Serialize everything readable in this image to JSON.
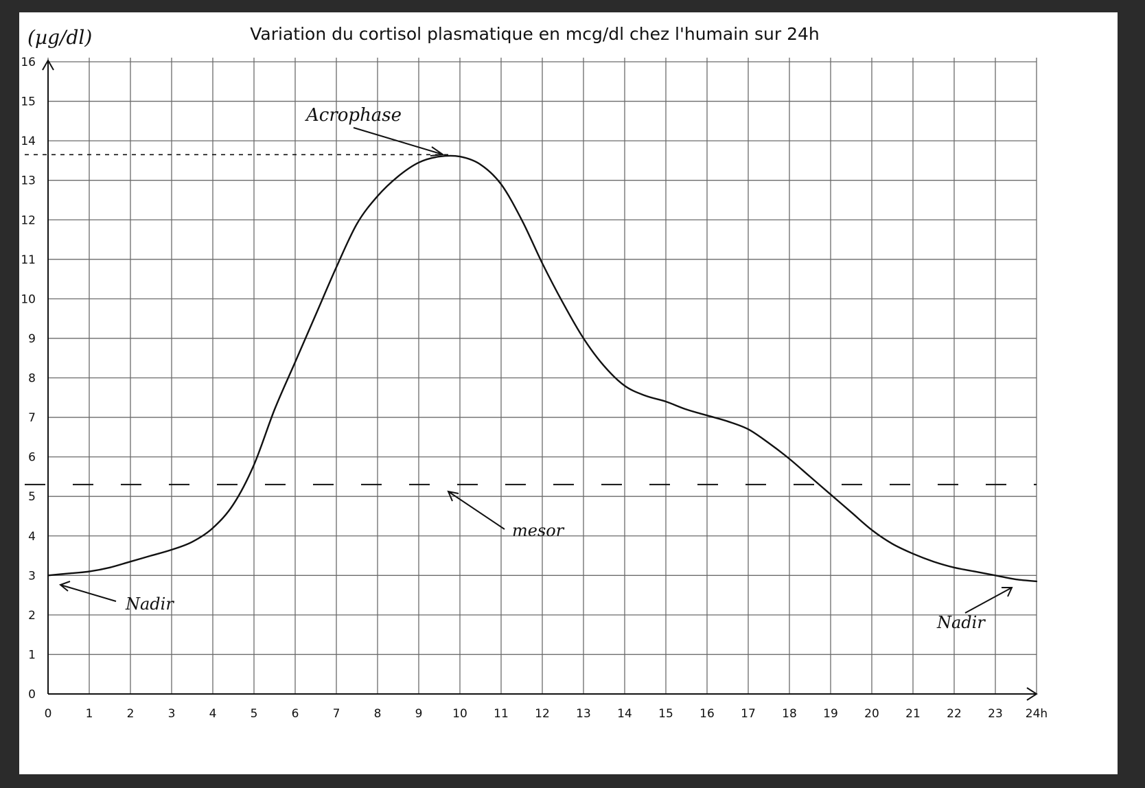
{
  "chart_data": {
    "type": "line",
    "title": "Variation du cortisol plasmatique en mcg/dl chez l'humain sur 24h",
    "ylabel": "(µg/dl)",
    "xlabel": "",
    "x_tick_labels": [
      "0",
      "1",
      "2",
      "3",
      "4",
      "5",
      "6",
      "7",
      "8",
      "9",
      "10",
      "11",
      "12",
      "13",
      "14",
      "15",
      "16",
      "17",
      "18",
      "19",
      "20",
      "21",
      "22",
      "23",
      "24h"
    ],
    "y_tick_labels": [
      "0",
      "1",
      "2",
      "3",
      "4",
      "5",
      "6",
      "7",
      "8",
      "9",
      "10",
      "11",
      "12",
      "13",
      "14",
      "15",
      "16"
    ],
    "xlim": [
      0,
      24
    ],
    "ylim": [
      0,
      16
    ],
    "grid": true,
    "series": [
      {
        "x": [
          0,
          0.5,
          1,
          1.5,
          2,
          2.5,
          3,
          3.5,
          4,
          4.5,
          5,
          5.5,
          6,
          6.5,
          7,
          7.5,
          8,
          8.5,
          9,
          9.5,
          10,
          10.5,
          11,
          11.5,
          12,
          12.5,
          13,
          13.5,
          14,
          14.5,
          15,
          15.5,
          16,
          16.5,
          17,
          17.5,
          18,
          18.5,
          19,
          19.5,
          20,
          20.5,
          21,
          21.5,
          22,
          22.5,
          23,
          23.5,
          24
        ],
        "y": [
          3.0,
          3.05,
          3.1,
          3.2,
          3.35,
          3.5,
          3.65,
          3.85,
          4.2,
          4.8,
          5.8,
          7.2,
          8.4,
          9.6,
          10.8,
          11.9,
          12.6,
          13.1,
          13.45,
          13.6,
          13.6,
          13.4,
          12.9,
          12.0,
          10.9,
          9.9,
          9.0,
          8.3,
          7.8,
          7.55,
          7.4,
          7.2,
          7.05,
          6.9,
          6.7,
          6.35,
          5.95,
          5.5,
          5.05,
          4.6,
          4.15,
          3.8,
          3.55,
          3.35,
          3.2,
          3.1,
          3.0,
          2.9,
          2.85
        ]
      }
    ],
    "reference_lines": [
      {
        "label": "mesor",
        "value": 5.3,
        "style": "dashed"
      },
      {
        "label": "Acrophase",
        "value": 13.65,
        "style": "dotted"
      }
    ],
    "annotations": [
      {
        "text": "Acrophase",
        "x": 9.8,
        "y": 13.65
      },
      {
        "text": "mesor",
        "x": 9.8,
        "y": 5.3
      },
      {
        "text": "Nadir",
        "x": 0.3,
        "y": 2.95
      },
      {
        "text": "Nadir",
        "x": 23.5,
        "y": 2.9
      }
    ]
  }
}
